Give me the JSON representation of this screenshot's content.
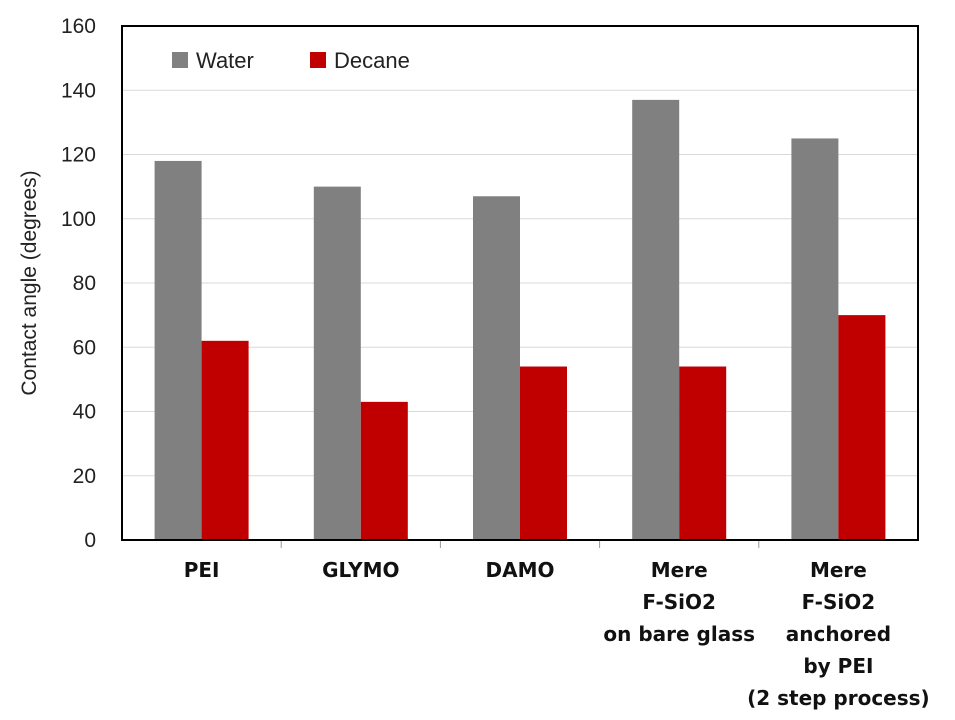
{
  "chart_data": {
    "type": "bar",
    "ylabel": "Contact angle  (degrees)",
    "ylim": [
      0,
      160
    ],
    "yticks": [
      0,
      20,
      40,
      60,
      80,
      100,
      120,
      140,
      160
    ],
    "grid": true,
    "legend_position": "top-left",
    "categories": [
      [
        "PEI"
      ],
      [
        "GLYMO"
      ],
      [
        "DAMO"
      ],
      [
        "Mere",
        "F-SiO2",
        "on bare glass"
      ],
      [
        "Mere",
        "F-SiO2",
        "anchored",
        "by PEI",
        "(2 step process)"
      ]
    ],
    "series": [
      {
        "name": "Water",
        "color": "#808080",
        "values": [
          118,
          110,
          107,
          137,
          125
        ]
      },
      {
        "name": "Decane",
        "color": "#c00000",
        "values": [
          62,
          43,
          54,
          54,
          70
        ]
      }
    ]
  }
}
